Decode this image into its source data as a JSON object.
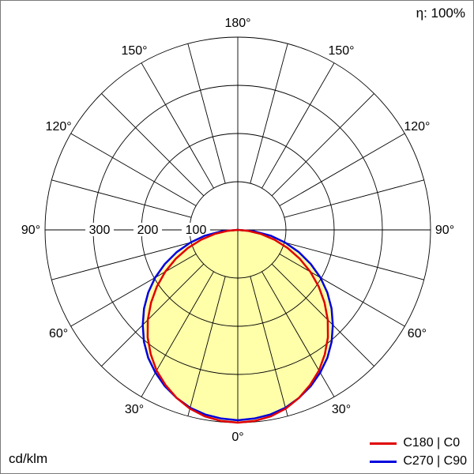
{
  "header": {
    "efficiency": "η: 100%"
  },
  "footer": {
    "units_label": "cd/klm"
  },
  "legend": {
    "items": [
      {
        "label": "C180 | C0",
        "color": "#e00000"
      },
      {
        "label": "C270 | C90",
        "color": "#0000dd"
      }
    ]
  },
  "chart_data": {
    "type": "polar",
    "subtype": "luminous-intensity-distribution",
    "units": "cd/klm",
    "efficiency_percent": 100,
    "radial_ticks": [
      100,
      200,
      300
    ],
    "radial_max": 400,
    "spoke_step_deg": 15,
    "angle_labels": [
      {
        "deg": 0,
        "label": "0°"
      },
      {
        "deg": 30,
        "label": "30°"
      },
      {
        "deg": 60,
        "label": "60°"
      },
      {
        "deg": 90,
        "label": "90°"
      },
      {
        "deg": 120,
        "label": "120°"
      },
      {
        "deg": 150,
        "label": "150°"
      },
      {
        "deg": 180,
        "label": "180°"
      }
    ],
    "fill_color": "#ffffaa",
    "grid_color": "#000000",
    "series": [
      {
        "name": "C180 | C0",
        "color": "#e00000",
        "angles_deg": [
          0,
          5,
          10,
          15,
          20,
          25,
          30,
          35,
          40,
          45,
          50,
          55,
          60,
          65,
          70,
          75,
          80,
          85,
          90
        ],
        "values": [
          400,
          398,
          393,
          384,
          371,
          355,
          337,
          315,
          291,
          264,
          235,
          205,
          174,
          142,
          110,
          79,
          49,
          21,
          0
        ]
      },
      {
        "name": "C270 | C90",
        "color": "#0000dd",
        "angles_deg": [
          0,
          5,
          10,
          15,
          20,
          25,
          30,
          35,
          40,
          45,
          50,
          55,
          60,
          65,
          70,
          75,
          80,
          85,
          90
        ],
        "values": [
          395,
          393,
          389,
          382,
          371,
          358,
          342,
          324,
          303,
          279,
          254,
          227,
          198,
          167,
          135,
          102,
          69,
          34,
          0
        ]
      }
    ]
  }
}
